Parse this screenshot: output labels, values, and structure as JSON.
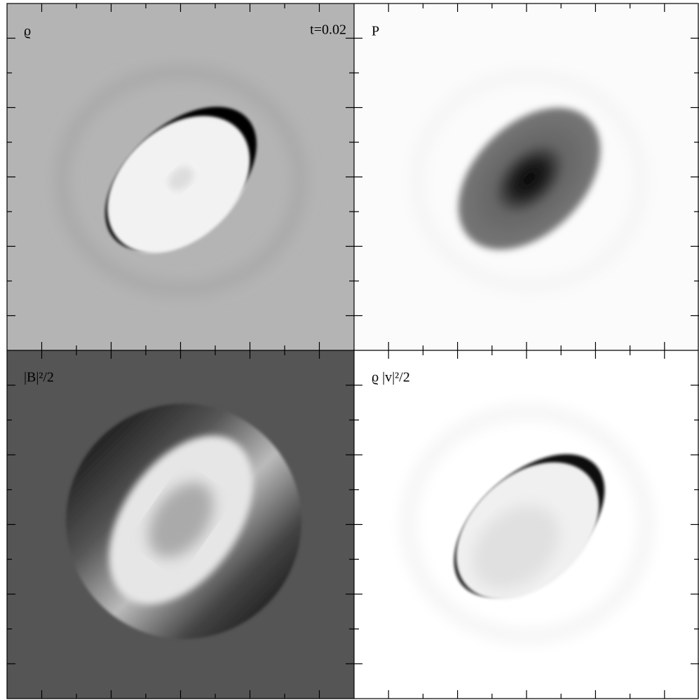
{
  "panels": [
    {
      "label": "ϱ",
      "time": "t=0.02"
    },
    {
      "label": "P"
    },
    {
      "label": "|B|²/2"
    },
    {
      "label": "ϱ |v|²/2"
    }
  ]
}
